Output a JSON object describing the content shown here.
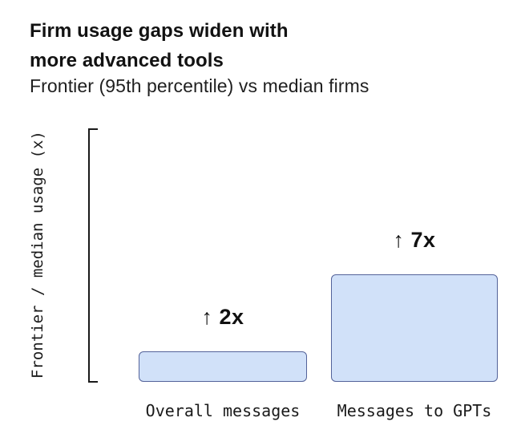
{
  "header": {
    "title": "Firm usage gaps widen with\nmore advanced tools",
    "subtitle": "Frontier (95th percentile) vs median firms"
  },
  "chart_data": {
    "type": "bar",
    "title": "Firm usage gaps widen with more advanced tools",
    "subtitle": "Frontier (95th percentile) vs median firms",
    "categories": [
      "Overall messages",
      "Messages to GPTs"
    ],
    "values": [
      2,
      7
    ],
    "annotations": [
      "↑ 2x",
      "↑ 7x"
    ],
    "xlabel": "",
    "ylabel": "Frontier / median usage (x)",
    "ylim": [
      0,
      8.25
    ],
    "grid": false,
    "legend_position": "none",
    "colors": {
      "bar_fill": "#d1e1f9",
      "bar_border": "#54639a",
      "axis": "#1a1a1a",
      "text": "#121212",
      "background": "#ffffff"
    }
  }
}
